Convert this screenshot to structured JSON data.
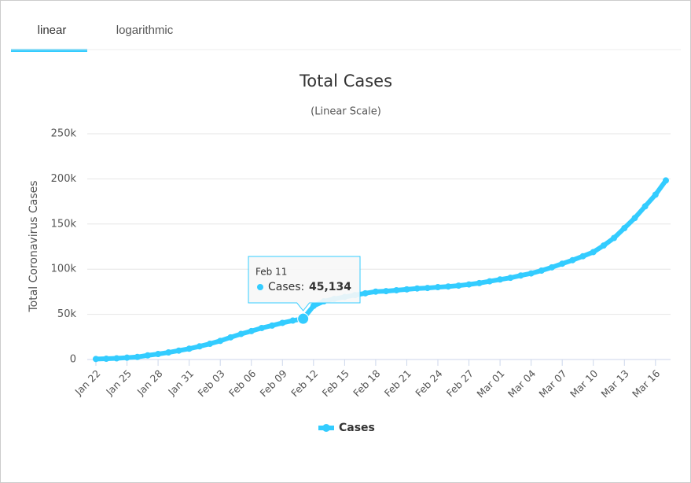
{
  "tabs": [
    "linear",
    "logarithmic"
  ],
  "chart_data": {
    "type": "line",
    "title": "Total Cases",
    "subtitle": "(Linear Scale)",
    "y_axis_label": "Total Coronavirus Cases",
    "categories": [
      "Jan 22",
      null,
      null,
      "Jan 25",
      null,
      null,
      "Jan 28",
      null,
      null,
      "Jan 31",
      null,
      null,
      "Feb 03",
      null,
      null,
      "Feb 06",
      null,
      null,
      "Feb 09",
      null,
      null,
      "Feb 12",
      null,
      null,
      "Feb 15",
      null,
      null,
      "Feb 18",
      null,
      null,
      "Feb 21",
      null,
      null,
      "Feb 24",
      null,
      null,
      "Feb 27",
      null,
      null,
      "Mar 01",
      null,
      null,
      "Mar 04",
      null,
      null,
      "Mar 07",
      null,
      null,
      "Mar 10",
      null,
      null,
      "Mar 13",
      null,
      null,
      "Mar 16",
      null
    ],
    "series": [
      {
        "name": "Cases",
        "color": "#33ccff",
        "values": [
          580,
          845,
          1317,
          2015,
          2800,
          4581,
          6058,
          7813,
          9823,
          11950,
          14553,
          17391,
          20630,
          24545,
          28266,
          31439,
          34876,
          37552,
          40553,
          43099,
          45134,
          59287,
          64438,
          67100,
          69197,
          71329,
          73332,
          75184,
          75700,
          76677,
          77673,
          78651,
          79205,
          80087,
          80828,
          81820,
          83112,
          84615,
          86604,
          88585,
          90443,
          93016,
          95314,
          98425,
          102050,
          106099,
          109991,
          114381,
          118948,
          126214,
          134576,
          145483,
          156653,
          169593,
          182490,
          198234
        ]
      }
    ],
    "ylim": [
      0,
      250000
    ],
    "yticks": [
      0,
      {
        "value": 50000,
        "label": "50k"
      },
      {
        "value": 100000,
        "label": "100k"
      },
      {
        "value": 150000,
        "label": "150k"
      },
      {
        "value": 200000,
        "label": "200k"
      },
      {
        "value": 250000,
        "label": "250k"
      }
    ],
    "grid": true,
    "legend": "bottom",
    "tooltip": {
      "title": "Feb 11",
      "label": "Cases:",
      "value": 45134,
      "value_label": "45,134"
    }
  }
}
